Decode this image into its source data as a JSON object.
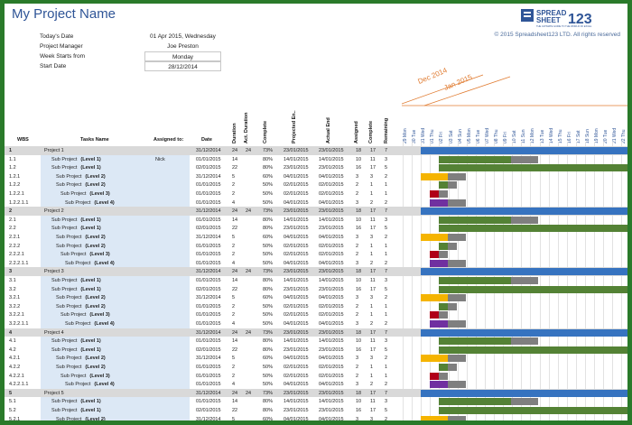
{
  "header": {
    "title": "My Project Name",
    "logo_top": "SPREAD",
    "logo_bottom": "SHEET",
    "logo_num": "123",
    "logo_tagline": "THE ULTIMATE GUIDE TO THE WORLD OF EXCEL",
    "copyright": "© 2015 Spreadsheet123 LTD. All rights reserved"
  },
  "info": {
    "todays_date_label": "Today's Date",
    "todays_date_value": "01 Apr 2015, Wednesday",
    "manager_label": "Project Manager",
    "manager_value": "Joe Preston",
    "week_label": "Week Starts from",
    "week_value": "Monday",
    "start_label": "Start Date",
    "start_value": "28/12/2014"
  },
  "months": [
    "Dec 2014",
    "Jan 2015"
  ],
  "columns": {
    "wbs": "WBS",
    "tasks": "Tasks Name",
    "assigned": "Assigned to:",
    "date": "Date",
    "duration": "Duration",
    "act_duration": "Act. Duration",
    "complete_pct": "Complete",
    "projected_end": "Projected En..",
    "actual_end": "Actual End",
    "assigned_n": "Assigned",
    "complete_n": "Complete",
    "remaining": "Remaining"
  },
  "days": [
    "29 Mon",
    "30 Tue",
    "31 Wed",
    "01 Thu",
    "02 Fri",
    "03 Sat",
    "04 Sun",
    "05 Mon",
    "06 Tue",
    "07 Wed",
    "08 Thu",
    "09 Fri",
    "10 Sat",
    "11 Sun",
    "12 Mon",
    "13 Tue",
    "14 Wed",
    "15 Thu",
    "16 Fri",
    "17 Sat",
    "18 Sun",
    "19 Mon",
    "20 Tue",
    "21 Wed",
    "22 Thu"
  ],
  "colors": {
    "blue": "#3673c0",
    "green": "#548235",
    "grey": "#7f7f7f",
    "yellow": "#f5b400",
    "red": "#b00018",
    "purple": "#7030a0"
  },
  "rows": [
    {
      "wbs": "1",
      "name": "Project 1",
      "bold": "",
      "assigned": "",
      "date": "31/12/2014",
      "dur": "24",
      "act": "24",
      "pct": "73%",
      "proj": "23/01/2015",
      "actual": "23/01/2015",
      "an": "18",
      "cn": "17",
      "rem": "7",
      "level": 0,
      "bar": "blue"
    },
    {
      "wbs": "1.1",
      "name": "Sub Project ",
      "bold": "(Level 1)",
      "assigned": "Nick",
      "date": "01/01/2015",
      "dur": "14",
      "act": "",
      "pct": "80%",
      "proj": "14/01/2015",
      "actual": "14/01/2015",
      "an": "10",
      "cn": "11",
      "rem": "3",
      "level": 1,
      "bar": "green"
    },
    {
      "wbs": "1.2",
      "name": "Sub Project ",
      "bold": "(Level 1)",
      "assigned": "",
      "date": "02/01/2015",
      "dur": "22",
      "act": "",
      "pct": "80%",
      "proj": "23/01/2015",
      "actual": "23/01/2015",
      "an": "16",
      "cn": "17",
      "rem": "5",
      "level": 1,
      "bar": "green2"
    },
    {
      "wbs": "1.2.1",
      "name": "Sub Project ",
      "bold": "(Level 2)",
      "assigned": "",
      "date": "31/12/2014",
      "dur": "5",
      "act": "",
      "pct": "60%",
      "proj": "04/01/2015",
      "actual": "04/01/2015",
      "an": "3",
      "cn": "3",
      "rem": "2",
      "level": 2,
      "bar": "yellow"
    },
    {
      "wbs": "1.2.2",
      "name": "Sub Project ",
      "bold": "(Level 2)",
      "assigned": "",
      "date": "01/01/2015",
      "dur": "2",
      "act": "",
      "pct": "50%",
      "proj": "02/01/2015",
      "actual": "02/01/2015",
      "an": "2",
      "cn": "1",
      "rem": "1",
      "level": 2,
      "bar": "green3"
    },
    {
      "wbs": "1.2.2.1",
      "name": "Sub Project ",
      "bold": "(Level 3)",
      "assigned": "",
      "date": "01/01/2015",
      "dur": "2",
      "act": "",
      "pct": "50%",
      "proj": "02/01/2015",
      "actual": "02/01/2015",
      "an": "2",
      "cn": "1",
      "rem": "1",
      "level": 3,
      "bar": "red"
    },
    {
      "wbs": "1.2.2.1.1",
      "name": "Sub Project ",
      "bold": "(Level 4)",
      "assigned": "",
      "date": "01/01/2015",
      "dur": "4",
      "act": "",
      "pct": "50%",
      "proj": "04/01/2015",
      "actual": "04/01/2015",
      "an": "3",
      "cn": "2",
      "rem": "2",
      "level": 4,
      "bar": "purple"
    },
    {
      "wbs": "2",
      "name": "Project 2",
      "bold": "",
      "assigned": "",
      "date": "31/12/2014",
      "dur": "24",
      "act": "24",
      "pct": "73%",
      "proj": "23/01/2015",
      "actual": "23/01/2015",
      "an": "18",
      "cn": "17",
      "rem": "7",
      "level": 0,
      "bar": "blue"
    },
    {
      "wbs": "2.1",
      "name": "Sub Project ",
      "bold": "(Level 1)",
      "assigned": "",
      "date": "01/01/2015",
      "dur": "14",
      "act": "",
      "pct": "80%",
      "proj": "14/01/2015",
      "actual": "14/01/2015",
      "an": "10",
      "cn": "11",
      "rem": "3",
      "level": 1,
      "bar": "green"
    },
    {
      "wbs": "2.2",
      "name": "Sub Project ",
      "bold": "(Level 1)",
      "assigned": "",
      "date": "02/01/2015",
      "dur": "22",
      "act": "",
      "pct": "80%",
      "proj": "23/01/2015",
      "actual": "23/01/2015",
      "an": "16",
      "cn": "17",
      "rem": "5",
      "level": 1,
      "bar": "green2"
    },
    {
      "wbs": "2.2.1",
      "name": "Sub Project ",
      "bold": "(Level 2)",
      "assigned": "",
      "date": "31/12/2014",
      "dur": "5",
      "act": "",
      "pct": "60%",
      "proj": "04/01/2015",
      "actual": "04/01/2015",
      "an": "3",
      "cn": "3",
      "rem": "2",
      "level": 2,
      "bar": "yellow"
    },
    {
      "wbs": "2.2.2",
      "name": "Sub Project ",
      "bold": "(Level 2)",
      "assigned": "",
      "date": "01/01/2015",
      "dur": "2",
      "act": "",
      "pct": "50%",
      "proj": "02/01/2015",
      "actual": "02/01/2015",
      "an": "2",
      "cn": "1",
      "rem": "1",
      "level": 2,
      "bar": "green3"
    },
    {
      "wbs": "2.2.2.1",
      "name": "Sub Project ",
      "bold": "(Level 3)",
      "assigned": "",
      "date": "01/01/2015",
      "dur": "2",
      "act": "",
      "pct": "50%",
      "proj": "02/01/2015",
      "actual": "02/01/2015",
      "an": "2",
      "cn": "1",
      "rem": "1",
      "level": 3,
      "bar": "red"
    },
    {
      "wbs": "2.2.2.1.1",
      "name": "Sub Project ",
      "bold": "(Level 4)",
      "assigned": "",
      "date": "01/01/2015",
      "dur": "4",
      "act": "",
      "pct": "50%",
      "proj": "04/01/2015",
      "actual": "04/01/2015",
      "an": "3",
      "cn": "2",
      "rem": "2",
      "level": 4,
      "bar": "purple"
    },
    {
      "wbs": "3",
      "name": "Project 3",
      "bold": "",
      "assigned": "",
      "date": "31/12/2014",
      "dur": "24",
      "act": "24",
      "pct": "73%",
      "proj": "23/01/2015",
      "actual": "23/01/2015",
      "an": "18",
      "cn": "17",
      "rem": "7",
      "level": 0,
      "bar": "blue"
    },
    {
      "wbs": "3.1",
      "name": "Sub Project ",
      "bold": "(Level 1)",
      "assigned": "",
      "date": "01/01/2015",
      "dur": "14",
      "act": "",
      "pct": "80%",
      "proj": "14/01/2015",
      "actual": "14/01/2015",
      "an": "10",
      "cn": "11",
      "rem": "3",
      "level": 1,
      "bar": "green"
    },
    {
      "wbs": "3.2",
      "name": "Sub Project ",
      "bold": "(Level 1)",
      "assigned": "",
      "date": "02/01/2015",
      "dur": "22",
      "act": "",
      "pct": "80%",
      "proj": "23/01/2015",
      "actual": "23/01/2015",
      "an": "16",
      "cn": "17",
      "rem": "5",
      "level": 1,
      "bar": "green2"
    },
    {
      "wbs": "3.2.1",
      "name": "Sub Project ",
      "bold": "(Level 2)",
      "assigned": "",
      "date": "31/12/2014",
      "dur": "5",
      "act": "",
      "pct": "60%",
      "proj": "04/01/2015",
      "actual": "04/01/2015",
      "an": "3",
      "cn": "3",
      "rem": "2",
      "level": 2,
      "bar": "yellow"
    },
    {
      "wbs": "3.2.2",
      "name": "Sub Project ",
      "bold": "(Level 2)",
      "assigned": "",
      "date": "01/01/2015",
      "dur": "2",
      "act": "",
      "pct": "50%",
      "proj": "02/01/2015",
      "actual": "02/01/2015",
      "an": "2",
      "cn": "1",
      "rem": "1",
      "level": 2,
      "bar": "green3"
    },
    {
      "wbs": "3.2.2.1",
      "name": "Sub Project ",
      "bold": "(Level 3)",
      "assigned": "",
      "date": "01/01/2015",
      "dur": "2",
      "act": "",
      "pct": "50%",
      "proj": "02/01/2015",
      "actual": "02/01/2015",
      "an": "2",
      "cn": "1",
      "rem": "1",
      "level": 3,
      "bar": "red"
    },
    {
      "wbs": "3.2.2.1.1",
      "name": "Sub Project ",
      "bold": "(Level 4)",
      "assigned": "",
      "date": "01/01/2015",
      "dur": "4",
      "act": "",
      "pct": "50%",
      "proj": "04/01/2015",
      "actual": "04/01/2015",
      "an": "3",
      "cn": "2",
      "rem": "2",
      "level": 4,
      "bar": "purple"
    },
    {
      "wbs": "4",
      "name": "Project 4",
      "bold": "",
      "assigned": "",
      "date": "31/12/2014",
      "dur": "24",
      "act": "24",
      "pct": "73%",
      "proj": "23/01/2015",
      "actual": "23/01/2015",
      "an": "18",
      "cn": "17",
      "rem": "7",
      "level": 0,
      "bar": "blue"
    },
    {
      "wbs": "4.1",
      "name": "Sub Project ",
      "bold": "(Level 1)",
      "assigned": "",
      "date": "01/01/2015",
      "dur": "14",
      "act": "",
      "pct": "80%",
      "proj": "14/01/2015",
      "actual": "14/01/2015",
      "an": "10",
      "cn": "11",
      "rem": "3",
      "level": 1,
      "bar": "green"
    },
    {
      "wbs": "4.2",
      "name": "Sub Project ",
      "bold": "(Level 1)",
      "assigned": "",
      "date": "02/01/2015",
      "dur": "22",
      "act": "",
      "pct": "80%",
      "proj": "23/01/2015",
      "actual": "23/01/2015",
      "an": "16",
      "cn": "17",
      "rem": "5",
      "level": 1,
      "bar": "green2"
    },
    {
      "wbs": "4.2.1",
      "name": "Sub Project ",
      "bold": "(Level 2)",
      "assigned": "",
      "date": "31/12/2014",
      "dur": "5",
      "act": "",
      "pct": "60%",
      "proj": "04/01/2015",
      "actual": "04/01/2015",
      "an": "3",
      "cn": "3",
      "rem": "2",
      "level": 2,
      "bar": "yellow"
    },
    {
      "wbs": "4.2.2",
      "name": "Sub Project ",
      "bold": "(Level 2)",
      "assigned": "",
      "date": "01/01/2015",
      "dur": "2",
      "act": "",
      "pct": "50%",
      "proj": "02/01/2015",
      "actual": "02/01/2015",
      "an": "2",
      "cn": "1",
      "rem": "1",
      "level": 2,
      "bar": "green3"
    },
    {
      "wbs": "4.2.2.1",
      "name": "Sub Project ",
      "bold": "(Level 3)",
      "assigned": "",
      "date": "01/01/2015",
      "dur": "2",
      "act": "",
      "pct": "50%",
      "proj": "02/01/2015",
      "actual": "02/01/2015",
      "an": "2",
      "cn": "1",
      "rem": "1",
      "level": 3,
      "bar": "red"
    },
    {
      "wbs": "4.2.2.1.1",
      "name": "Sub Project ",
      "bold": "(Level 4)",
      "assigned": "",
      "date": "01/01/2015",
      "dur": "4",
      "act": "",
      "pct": "50%",
      "proj": "04/01/2015",
      "actual": "04/01/2015",
      "an": "3",
      "cn": "2",
      "rem": "2",
      "level": 4,
      "bar": "purple"
    },
    {
      "wbs": "5",
      "name": "Project 5",
      "bold": "",
      "assigned": "",
      "date": "31/12/2014",
      "dur": "24",
      "act": "24",
      "pct": "73%",
      "proj": "23/01/2015",
      "actual": "23/01/2015",
      "an": "18",
      "cn": "17",
      "rem": "7",
      "level": 0,
      "bar": "blue"
    },
    {
      "wbs": "5.1",
      "name": "Sub Project ",
      "bold": "(Level 1)",
      "assigned": "",
      "date": "01/01/2015",
      "dur": "14",
      "act": "",
      "pct": "80%",
      "proj": "14/01/2015",
      "actual": "14/01/2015",
      "an": "10",
      "cn": "11",
      "rem": "3",
      "level": 1,
      "bar": "green"
    },
    {
      "wbs": "5.2",
      "name": "Sub Project ",
      "bold": "(Level 1)",
      "assigned": "",
      "date": "02/01/2015",
      "dur": "22",
      "act": "",
      "pct": "80%",
      "proj": "23/01/2015",
      "actual": "23/01/2015",
      "an": "16",
      "cn": "17",
      "rem": "5",
      "level": 1,
      "bar": "green2"
    },
    {
      "wbs": "5.2.1",
      "name": "Sub Project ",
      "bold": "(Level 2)",
      "assigned": "",
      "date": "31/12/2014",
      "dur": "5",
      "act": "",
      "pct": "60%",
      "proj": "04/01/2015",
      "actual": "04/01/2015",
      "an": "3",
      "cn": "3",
      "rem": "2",
      "level": 2,
      "bar": "yellow"
    }
  ]
}
